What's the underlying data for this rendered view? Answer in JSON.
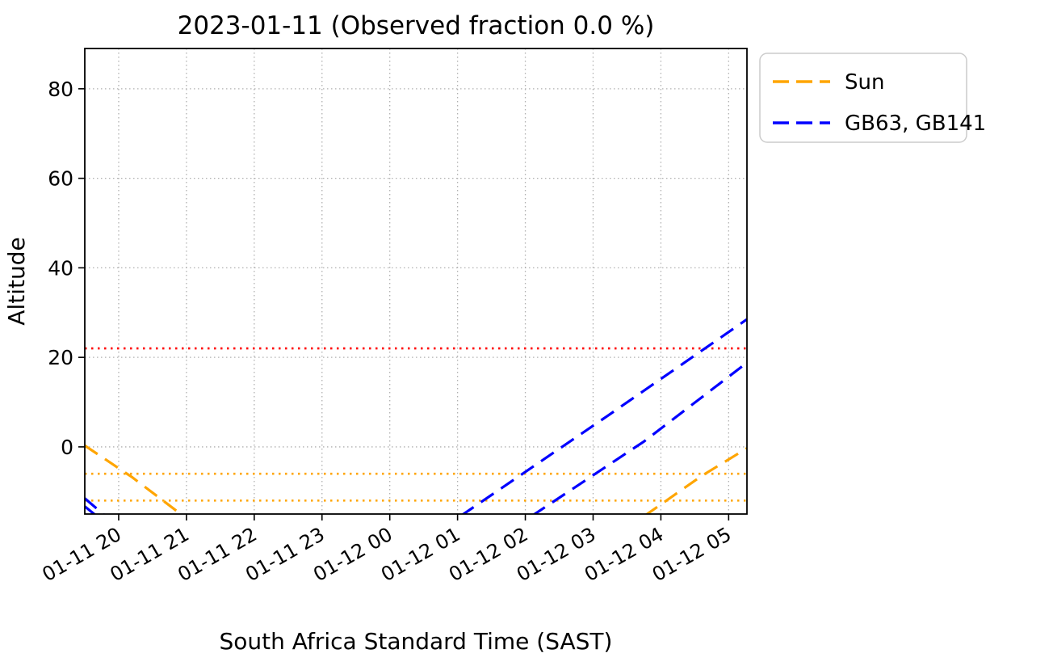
{
  "chart_data": {
    "type": "line",
    "title": "2023-01-11 (Observed fraction 0.0 %)",
    "xlabel": "South Africa Standard Time (SAST)",
    "ylabel": "Altitude",
    "x_unit": "hours since 2023-01-11 00:00 SAST",
    "xlim": [
      19.5,
      29.27
    ],
    "ylim": [
      -15,
      89
    ],
    "grid": true,
    "yticks": [
      0,
      20,
      40,
      60,
      80
    ],
    "xticks": [
      {
        "x": 20,
        "label": "01-11 20"
      },
      {
        "x": 21,
        "label": "01-11 21"
      },
      {
        "x": 22,
        "label": "01-11 22"
      },
      {
        "x": 23,
        "label": "01-11 23"
      },
      {
        "x": 24,
        "label": "01-12 00"
      },
      {
        "x": 25,
        "label": "01-12 01"
      },
      {
        "x": 26,
        "label": "01-12 02"
      },
      {
        "x": 27,
        "label": "01-12 03"
      },
      {
        "x": 28,
        "label": "01-12 04"
      },
      {
        "x": 29,
        "label": "01-12 05"
      }
    ],
    "hlines": [
      {
        "name": "altitude-limit-line",
        "y": 22,
        "color": "#ff0000",
        "style": "dotted"
      },
      {
        "name": "sun-threshold-upper-line",
        "y": -6,
        "color": "#ffa500",
        "style": "dotted"
      },
      {
        "name": "sun-threshold-lower-line",
        "y": -12,
        "color": "#ffa500",
        "style": "dotted"
      }
    ],
    "series": [
      {
        "name": "sun-evening",
        "legend": "Sun",
        "color": "#ffa500",
        "style": "dashed",
        "points": [
          [
            19.5,
            0.3
          ],
          [
            20.2,
            -6.8
          ],
          [
            20.95,
            -15.4
          ]
        ]
      },
      {
        "name": "sun-morning",
        "legend": "Sun",
        "color": "#ffa500",
        "style": "dashed",
        "points": [
          [
            27.76,
            -15.4
          ],
          [
            28.6,
            -6.5
          ],
          [
            29.27,
            -0.3
          ]
        ]
      },
      {
        "name": "target-setting-1",
        "legend": "GB63, GB141",
        "color": "#0000ff",
        "style": "dashed",
        "points": [
          [
            19.5,
            -11.5
          ],
          [
            19.8,
            -15.4
          ]
        ]
      },
      {
        "name": "target-setting-2",
        "legend": "GB63, GB141",
        "color": "#0000ff",
        "style": "dashed",
        "points": [
          [
            19.5,
            -13.3
          ],
          [
            19.67,
            -15.4
          ]
        ]
      },
      {
        "name": "target-rising-1",
        "legend": "GB63, GB141",
        "color": "#0000ff",
        "style": "dashed",
        "points": [
          [
            25.05,
            -15.4
          ],
          [
            27.2,
            6.8
          ],
          [
            29.27,
            28.5
          ]
        ]
      },
      {
        "name": "target-rising-2",
        "legend": "GB63, GB141",
        "color": "#0000ff",
        "style": "dashed",
        "points": [
          [
            26.1,
            -15.4
          ],
          [
            27.75,
            1.2
          ],
          [
            29.27,
            18.8
          ]
        ]
      }
    ],
    "legend": {
      "position": "outside-top-right",
      "entries": [
        {
          "label": "Sun",
          "color": "#ffa500"
        },
        {
          "label": "GB63, GB141",
          "color": "#0000ff"
        }
      ]
    }
  }
}
